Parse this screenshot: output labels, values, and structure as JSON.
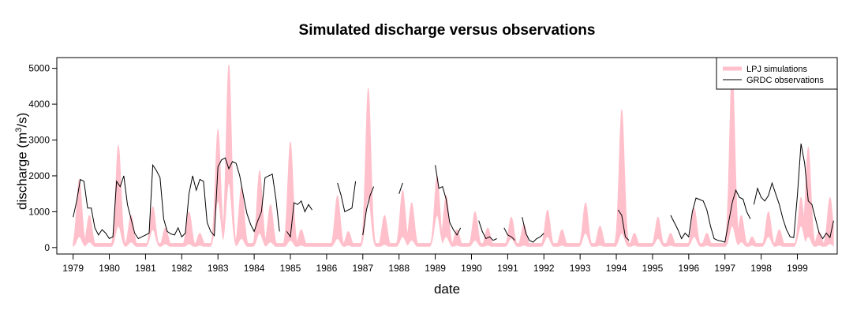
{
  "chart_data": {
    "type": "area",
    "title": "Simulated discharge versus observations",
    "xlabel": "date",
    "ylabel_main": "discharge (m",
    "ylabel_sup": "3",
    "ylabel_tail": "/s)",
    "xlim": [
      1978.55,
      2000.1
    ],
    "ylim": [
      -180,
      5300
    ],
    "y_ticks": [
      0,
      1000,
      2000,
      3000,
      4000,
      5000
    ],
    "x_ticks": [
      1979,
      1980,
      1981,
      1982,
      1983,
      1984,
      1985,
      1986,
      1987,
      1988,
      1989,
      1990,
      1991,
      1992,
      1993,
      1994,
      1995,
      1996,
      1997,
      1998,
      1999
    ],
    "legend_position": "top-right",
    "colors": {
      "simulations": "#ffc0cb",
      "observations": "#000000"
    },
    "series": [
      {
        "name": "LPJ simulations",
        "kind": "band",
        "peaks": [
          [
            1979.17,
            300,
            1900
          ],
          [
            1979.45,
            150,
            900
          ],
          [
            1980.25,
            600,
            2850
          ],
          [
            1980.6,
            150,
            900
          ],
          [
            1981.2,
            500,
            1150
          ],
          [
            1981.55,
            100,
            550
          ],
          [
            1982.2,
            100,
            1000
          ],
          [
            1982.5,
            60,
            400
          ],
          [
            1983.0,
            1300,
            3300
          ],
          [
            1983.3,
            1800,
            5100
          ],
          [
            1983.65,
            250,
            1700
          ],
          [
            1984.15,
            400,
            2150
          ],
          [
            1984.45,
            150,
            1200
          ],
          [
            1985.0,
            200,
            2950
          ],
          [
            1985.3,
            60,
            500
          ],
          [
            1986.3,
            250,
            1450
          ],
          [
            1986.6,
            60,
            450
          ],
          [
            1987.15,
            1400,
            4450
          ],
          [
            1987.6,
            80,
            900
          ],
          [
            1988.1,
            300,
            1600
          ],
          [
            1988.35,
            200,
            1250
          ],
          [
            1989.05,
            900,
            2000
          ],
          [
            1989.3,
            300,
            1450
          ],
          [
            1989.6,
            60,
            500
          ],
          [
            1990.1,
            200,
            1000
          ],
          [
            1990.45,
            60,
            550
          ],
          [
            1991.1,
            250,
            850
          ],
          [
            1991.45,
            60,
            650
          ],
          [
            1992.1,
            300,
            1050
          ],
          [
            1992.5,
            60,
            500
          ],
          [
            1993.15,
            400,
            1250
          ],
          [
            1993.55,
            60,
            600
          ],
          [
            1994.15,
            400,
            3850
          ],
          [
            1994.5,
            60,
            400
          ],
          [
            1995.15,
            250,
            850
          ],
          [
            1995.5,
            60,
            400
          ],
          [
            1996.15,
            300,
            1100
          ],
          [
            1996.5,
            60,
            400
          ],
          [
            1997.2,
            600,
            5000
          ],
          [
            1997.45,
            150,
            900
          ],
          [
            1997.75,
            60,
            300
          ],
          [
            1998.2,
            300,
            1000
          ],
          [
            1998.5,
            60,
            500
          ],
          [
            1999.1,
            600,
            1400
          ],
          [
            1999.3,
            300,
            2800
          ],
          [
            1999.6,
            60,
            450
          ],
          [
            1999.9,
            100,
            1400
          ]
        ]
      },
      {
        "name": "GRDC observations",
        "kind": "line",
        "segments": [
          [
            [
              1979.0,
              850
            ],
            [
              1979.1,
              1300
            ],
            [
              1979.2,
              1900
            ],
            [
              1979.3,
              1850
            ],
            [
              1979.4,
              1100
            ],
            [
              1979.5,
              1100
            ],
            [
              1979.6,
              550
            ],
            [
              1979.7,
              350
            ],
            [
              1979.8,
              500
            ],
            [
              1979.9,
              400
            ],
            [
              1980.0,
              250
            ],
            [
              1980.1,
              300
            ],
            [
              1980.2,
              1850
            ],
            [
              1980.3,
              1700
            ],
            [
              1980.4,
              2000
            ],
            [
              1980.5,
              1200
            ],
            [
              1980.6,
              800
            ],
            [
              1980.7,
              400
            ],
            [
              1980.8,
              250
            ],
            [
              1980.9,
              300
            ],
            [
              1981.0,
              350
            ],
            [
              1981.1,
              400
            ],
            [
              1981.2,
              2300
            ],
            [
              1981.3,
              2150
            ],
            [
              1981.4,
              1950
            ],
            [
              1981.5,
              800
            ],
            [
              1981.6,
              450
            ],
            [
              1981.7,
              380
            ],
            [
              1981.8,
              350
            ],
            [
              1981.9,
              550
            ],
            [
              1982.0,
              300
            ],
            [
              1982.1,
              400
            ],
            [
              1982.2,
              1500
            ],
            [
              1982.3,
              2000
            ],
            [
              1982.4,
              1600
            ],
            [
              1982.5,
              1900
            ],
            [
              1982.6,
              1850
            ],
            [
              1982.7,
              700
            ],
            [
              1982.8,
              450
            ],
            [
              1982.9,
              330
            ],
            [
              1983.0,
              2250
            ],
            [
              1983.1,
              2450
            ],
            [
              1983.2,
              2500
            ],
            [
              1983.3,
              2200
            ],
            [
              1983.4,
              2400
            ],
            [
              1983.5,
              2350
            ],
            [
              1983.6,
              2000
            ],
            [
              1983.7,
              1450
            ],
            [
              1983.8,
              950
            ],
            [
              1983.9,
              650
            ],
            [
              1984.0,
              450
            ],
            [
              1984.1,
              750
            ],
            [
              1984.2,
              1000
            ],
            [
              1984.3,
              1950
            ],
            [
              1984.4,
              2000
            ],
            [
              1984.5,
              2050
            ],
            [
              1984.6,
              1350
            ],
            [
              1984.7,
              450
            ]
          ],
          [
            [
              1984.9,
              450
            ],
            [
              1985.0,
              300
            ],
            [
              1985.1,
              1250
            ],
            [
              1985.2,
              1200
            ],
            [
              1985.3,
              1300
            ],
            [
              1985.4,
              1000
            ],
            [
              1985.5,
              1200
            ],
            [
              1985.6,
              1050
            ]
          ],
          [
            [
              1986.3,
              1800
            ],
            [
              1986.4,
              1450
            ],
            [
              1986.5,
              1000
            ],
            [
              1986.6,
              1050
            ],
            [
              1986.7,
              1100
            ],
            [
              1986.8,
              1850
            ]
          ],
          [
            [
              1987.0,
              350
            ],
            [
              1987.1,
              1050
            ],
            [
              1987.2,
              1450
            ],
            [
              1987.3,
              1700
            ]
          ],
          [
            [
              1988.0,
              1500
            ],
            [
              1988.1,
              1800
            ]
          ],
          [
            [
              1989.0,
              2300
            ],
            [
              1989.1,
              1650
            ],
            [
              1989.2,
              1700
            ],
            [
              1989.3,
              1350
            ],
            [
              1989.4,
              700
            ],
            [
              1989.5,
              500
            ],
            [
              1989.6,
              350
            ],
            [
              1989.7,
              550
            ]
          ],
          [
            [
              1990.2,
              750
            ],
            [
              1990.3,
              450
            ],
            [
              1990.4,
              250
            ],
            [
              1990.5,
              300
            ],
            [
              1990.6,
              200
            ],
            [
              1990.7,
              250
            ]
          ],
          [
            [
              1990.9,
              550
            ],
            [
              1991.0,
              350
            ],
            [
              1991.1,
              300
            ],
            [
              1991.2,
              200
            ]
          ],
          [
            [
              1991.4,
              850
            ],
            [
              1991.5,
              400
            ],
            [
              1991.6,
              200
            ],
            [
              1991.7,
              150
            ],
            [
              1991.8,
              250
            ],
            [
              1991.9,
              300
            ],
            [
              1992.0,
              400
            ]
          ],
          [
            [
              1994.05,
              1050
            ],
            [
              1994.15,
              900
            ],
            [
              1994.25,
              300
            ],
            [
              1994.35,
              200
            ]
          ],
          [
            [
              1995.5,
              900
            ],
            [
              1995.6,
              700
            ],
            [
              1995.7,
              500
            ],
            [
              1995.8,
              250
            ],
            [
              1995.9,
              400
            ],
            [
              1996.0,
              300
            ],
            [
              1996.1,
              1000
            ],
            [
              1996.2,
              1380
            ],
            [
              1996.3,
              1340
            ],
            [
              1996.4,
              1300
            ],
            [
              1996.5,
              1050
            ],
            [
              1996.6,
              600
            ],
            [
              1996.7,
              250
            ],
            [
              1996.8,
              200
            ],
            [
              1996.9,
              180
            ],
            [
              1997.0,
              150
            ],
            [
              1997.1,
              700
            ],
            [
              1997.2,
              1250
            ],
            [
              1997.3,
              1600
            ],
            [
              1997.4,
              1400
            ],
            [
              1997.5,
              1350
            ],
            [
              1997.6,
              1000
            ],
            [
              1997.7,
              800
            ]
          ],
          [
            [
              1997.8,
              1200
            ],
            [
              1997.9,
              1650
            ],
            [
              1998.0,
              1400
            ],
            [
              1998.1,
              1300
            ],
            [
              1998.2,
              1450
            ],
            [
              1998.3,
              1800
            ],
            [
              1998.4,
              1500
            ],
            [
              1998.5,
              1200
            ],
            [
              1998.6,
              800
            ],
            [
              1998.7,
              500
            ],
            [
              1998.8,
              300
            ],
            [
              1998.9,
              280
            ],
            [
              1999.0,
              1450
            ],
            [
              1999.1,
              2900
            ],
            [
              1999.2,
              2350
            ],
            [
              1999.3,
              1300
            ],
            [
              1999.4,
              1200
            ],
            [
              1999.5,
              800
            ],
            [
              1999.6,
              400
            ],
            [
              1999.7,
              250
            ],
            [
              1999.8,
              400
            ],
            [
              1999.9,
              280
            ],
            [
              2000.0,
              750
            ]
          ]
        ]
      }
    ]
  }
}
